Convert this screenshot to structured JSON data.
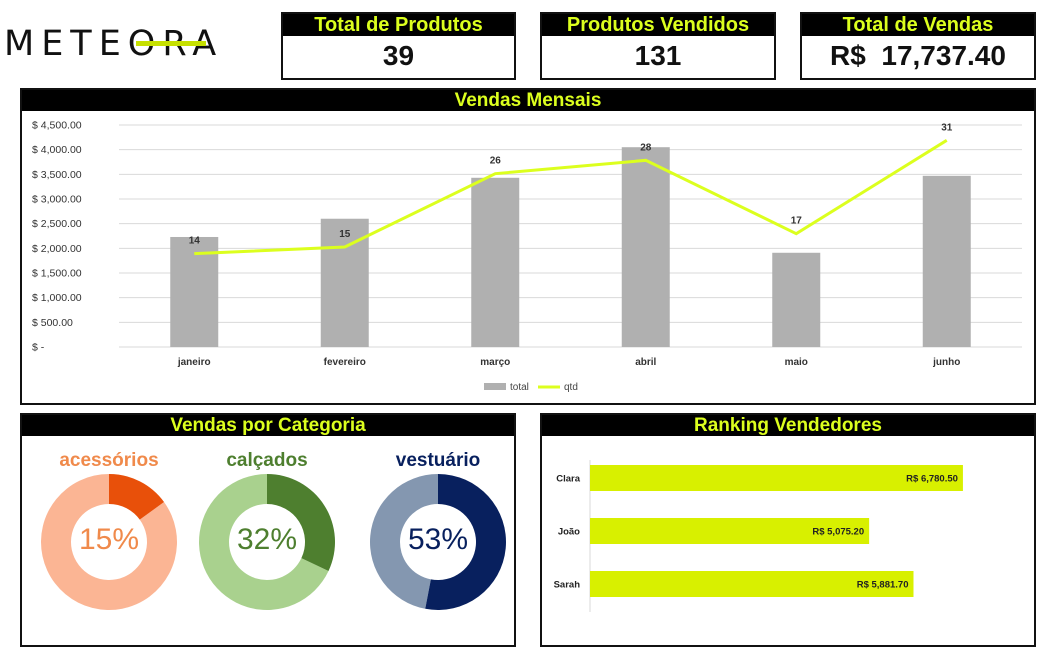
{
  "logo": {
    "text": "METEORA"
  },
  "kpis": [
    {
      "label": "Total de Produtos",
      "value": "39"
    },
    {
      "label": "Produtos Vendidos",
      "value": "131"
    },
    {
      "label": "Total de Vendas",
      "value": "R$  17,737.40"
    }
  ],
  "monthly": {
    "title": "Vendas Mensais"
  },
  "categories_panel": {
    "title": "Vendas por Categoria"
  },
  "ranking_panel": {
    "title": "Ranking Vendedores"
  },
  "colors": {
    "bar": "#b0b0b0",
    "line": "#dcff1e",
    "header_text": "#dcff1e",
    "acessorios": "#e8500a",
    "acessorios_light": "#fbb594",
    "calcados": "#4e7f2f",
    "calcados_light": "#a9d18e",
    "vestuario": "#08205e",
    "vestuario_light": "#8497b0",
    "ranking_bar": "#d8f000"
  },
  "chart_data": [
    {
      "type": "bar",
      "title": "Vendas Mensais",
      "categories": [
        "janeiro",
        "fevereiro",
        "março",
        "abril",
        "maio",
        "junho"
      ],
      "series": [
        {
          "name": "total",
          "type": "bar",
          "values": [
            2230,
            2600,
            3430,
            4050,
            1910,
            3470
          ]
        },
        {
          "name": "qtd",
          "type": "line",
          "values": [
            14,
            15,
            26,
            28,
            17,
            31
          ]
        }
      ],
      "ylim": [
        0,
        4500
      ],
      "yticks": [
        0,
        500,
        1000,
        1500,
        2000,
        2500,
        3000,
        3500,
        4000,
        4500
      ],
      "ytick_labels": [
        "$ -",
        "$ 500.00",
        "$ 1,000.00",
        "$ 1,500.00",
        "$ 2,000.00",
        "$ 2,500.00",
        "$ 3,000.00",
        "$ 3,500.00",
        "$ 4,000.00",
        "$ 4,500.00"
      ],
      "legend": [
        "total",
        "qtd"
      ],
      "legend_position": "bottom",
      "grid": true
    },
    {
      "type": "pie",
      "title": "Vendas por Categoria",
      "slices": [
        {
          "label": "acessórios",
          "value": 15,
          "text": "15%"
        },
        {
          "label": "calçados",
          "value": 32,
          "text": "32%"
        },
        {
          "label": "vestuário",
          "value": 53,
          "text": "53%"
        }
      ]
    },
    {
      "type": "bar",
      "title": "Ranking Vendedores",
      "orientation": "horizontal",
      "categories": [
        "Clara",
        "João",
        "Sarah"
      ],
      "values": [
        6780.5,
        5075.2,
        5881.7
      ],
      "value_labels": [
        "R$ 6,780.50",
        "R$ 5,075.20",
        "R$ 5,881.70"
      ]
    }
  ]
}
